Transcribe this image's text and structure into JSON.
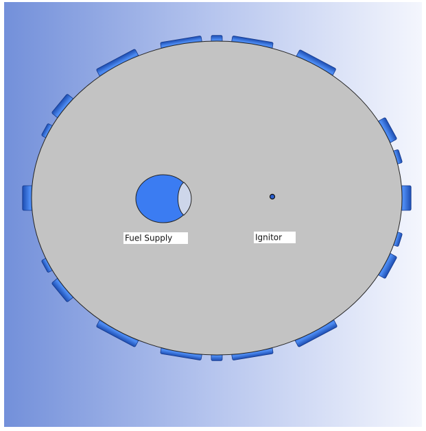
{
  "labels": {
    "fuel_supply": "Fuel Supply",
    "ignitor": "Ignitor"
  }
}
